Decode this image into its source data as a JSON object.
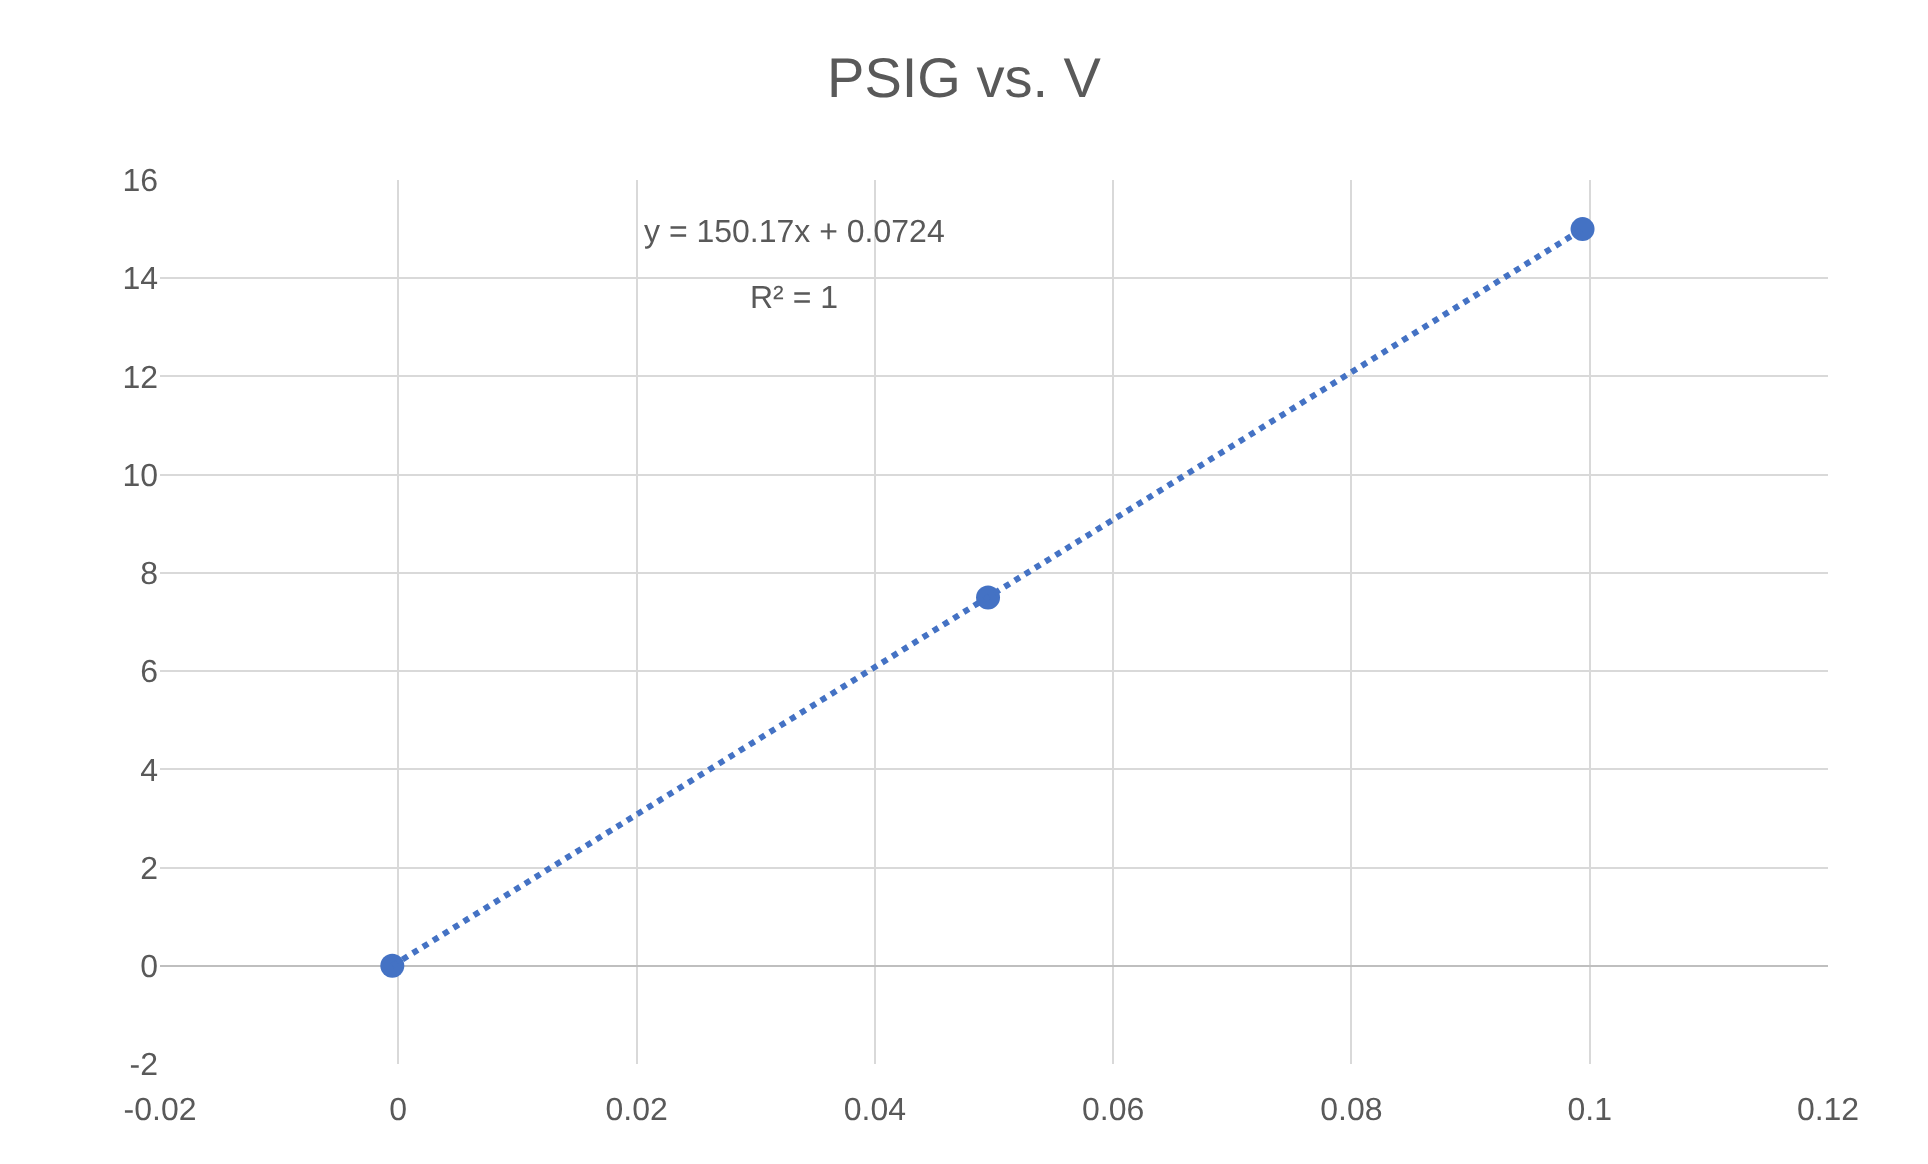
{
  "chart_data": {
    "type": "scatter",
    "title": "PSIG vs. V",
    "x": [
      -0.0005,
      0.0495,
      0.0994
    ],
    "series": [
      {
        "type": "scatter",
        "color": "#4472c4",
        "values": [
          0,
          7.5,
          15
        ],
        "marker": "circle"
      },
      {
        "type": "line",
        "color": "#4472c4",
        "x": [
          -0.0005,
          0.0994
        ],
        "values": [
          0,
          15
        ],
        "line_style": "dotted",
        "marker": "none"
      }
    ],
    "annotations": [
      "y = 150.17x + 0.0724",
      "R² = 1"
    ],
    "xlim": [
      -0.02,
      0.12
    ],
    "xticks": [
      -0.02,
      0,
      0.02,
      0.04,
      0.06,
      0.08,
      0.1,
      0.12
    ],
    "ylim": [
      -2,
      16
    ],
    "yticks": [
      -2,
      0,
      2,
      4,
      6,
      8,
      10,
      12,
      14,
      16
    ],
    "grid": true
  }
}
